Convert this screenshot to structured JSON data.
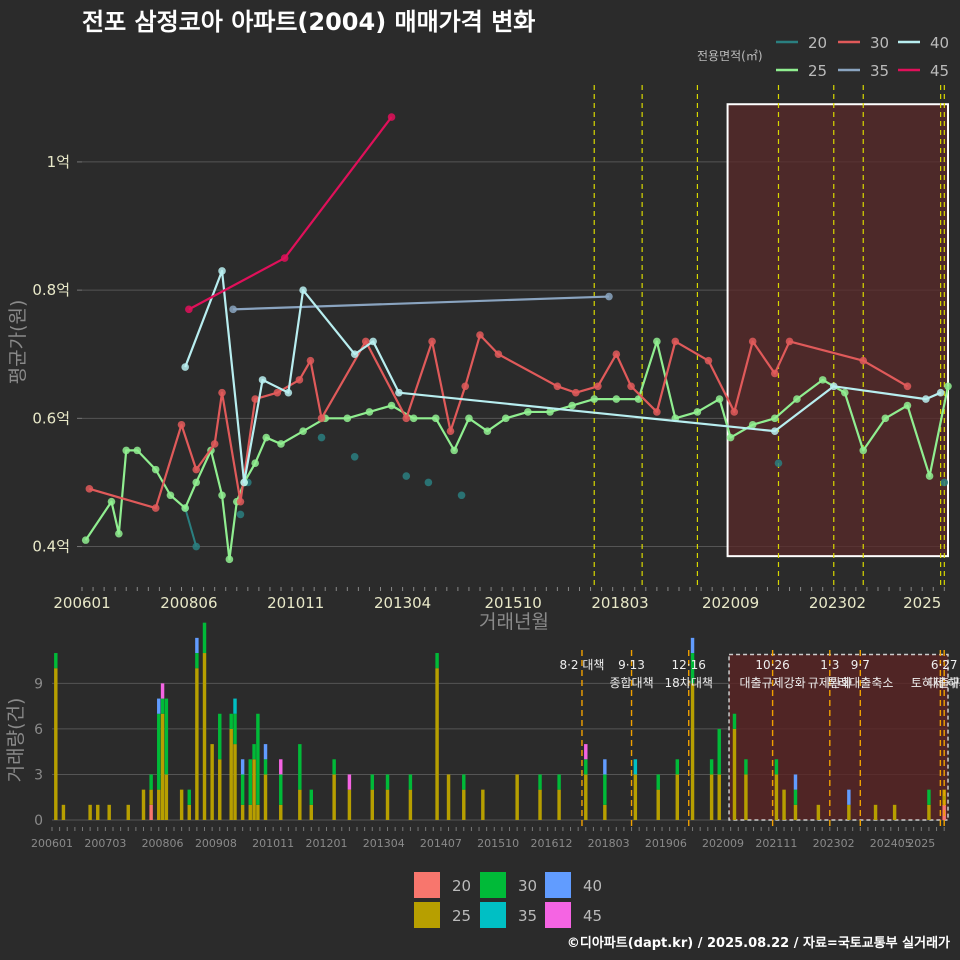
{
  "title": "전포 삼정코아 아파트(2004) 매매가격 변화",
  "footer": "©디아파트(dapt.kr) / 2025.08.22 / 자료=국토교통부 실거래가",
  "colors": {
    "20": "#2a7f80",
    "25": "#90ee90",
    "30": "#e05a5a",
    "35": "#8aa4c0",
    "40": "#b8eef0",
    "45": "#e0105a"
  },
  "bar_colors": {
    "20": "#f8766d",
    "25": "#b79f00",
    "30": "#00ba38",
    "35": "#00bfc4",
    "40": "#619cff",
    "45": "#f564e3"
  },
  "chart_data": [
    {
      "type": "line",
      "name": "price",
      "xlabel": "거래년월",
      "ylabel": "평균가(원)",
      "legend_title": "전용면적(㎡)",
      "legend_position": "top-right",
      "x_ticks": [
        "200601",
        "200806",
        "201011",
        "201304",
        "201510",
        "201803",
        "202009",
        "202302",
        "2025"
      ],
      "y_ticks": [
        {
          "v": 0.4,
          "label": "0.4억"
        },
        {
          "v": 0.6,
          "label": "0.6억"
        },
        {
          "v": 0.8,
          "label": "0.8억"
        },
        {
          "v": 1.0,
          "label": "1억"
        }
      ],
      "ylim": [
        0.34,
        1.12
      ],
      "xlim": [
        "2006-01",
        "2025-08"
      ],
      "highlight_range": [
        "2020-09",
        "2025-08"
      ],
      "policy_dates": [
        "2017-08",
        "2018-09",
        "2019-12",
        "2021-10",
        "2023-01",
        "2023-09",
        "2025-06",
        "2025-07"
      ],
      "series": [
        {
          "name": "20",
          "points": [
            [
              "2008-05",
              0.46
            ],
            [
              "2008-08",
              0.4
            ],
            [
              "2009-08",
              0.45
            ],
            [
              "2009-10",
              0.5
            ],
            [
              "2011-06",
              0.57
            ],
            [
              "2012-03",
              0.54
            ],
            [
              "2013-05",
              0.51
            ],
            [
              "2013-11",
              0.5
            ],
            [
              "2014-08",
              0.48
            ],
            [
              "2021-10",
              0.53
            ],
            [
              "2025-07",
              0.5
            ]
          ]
        },
        {
          "name": "25",
          "points": [
            [
              "2006-02",
              0.41
            ],
            [
              "2006-09",
              0.47
            ],
            [
              "2006-11",
              0.42
            ],
            [
              "2007-01",
              0.55
            ],
            [
              "2007-04",
              0.55
            ],
            [
              "2007-09",
              0.52
            ],
            [
              "2008-01",
              0.48
            ],
            [
              "2008-05",
              0.46
            ],
            [
              "2008-08",
              0.5
            ],
            [
              "2008-12",
              0.55
            ],
            [
              "2009-03",
              0.48
            ],
            [
              "2009-05",
              0.38
            ],
            [
              "2009-07",
              0.47
            ],
            [
              "2009-09",
              0.5
            ],
            [
              "2009-12",
              0.53
            ],
            [
              "2010-03",
              0.57
            ],
            [
              "2010-07",
              0.56
            ],
            [
              "2011-01",
              0.58
            ],
            [
              "2011-07",
              0.6
            ],
            [
              "2012-01",
              0.6
            ],
            [
              "2012-07",
              0.61
            ],
            [
              "2013-01",
              0.62
            ],
            [
              "2013-07",
              0.6
            ],
            [
              "2014-01",
              0.6
            ],
            [
              "2014-06",
              0.55
            ],
            [
              "2014-10",
              0.6
            ],
            [
              "2015-03",
              0.58
            ],
            [
              "2015-08",
              0.6
            ],
            [
              "2016-02",
              0.61
            ],
            [
              "2016-08",
              0.61
            ],
            [
              "2017-02",
              0.62
            ],
            [
              "2017-08",
              0.63
            ],
            [
              "2018-02",
              0.63
            ],
            [
              "2018-08",
              0.63
            ],
            [
              "2019-01",
              0.72
            ],
            [
              "2019-06",
              0.6
            ],
            [
              "2019-12",
              0.61
            ],
            [
              "2020-06",
              0.63
            ],
            [
              "2020-09",
              0.57
            ],
            [
              "2021-03",
              0.59
            ],
            [
              "2021-09",
              0.6
            ],
            [
              "2022-03",
              0.63
            ],
            [
              "2022-10",
              0.66
            ],
            [
              "2023-04",
              0.64
            ],
            [
              "2023-09",
              0.55
            ],
            [
              "2024-03",
              0.6
            ],
            [
              "2024-09",
              0.62
            ],
            [
              "2025-03",
              0.51
            ],
            [
              "2025-08",
              0.65
            ]
          ]
        },
        {
          "name": "30",
          "points": [
            [
              "2006-03",
              0.49
            ],
            [
              "2007-09",
              0.46
            ],
            [
              "2008-04",
              0.59
            ],
            [
              "2008-08",
              0.52
            ],
            [
              "2009-01",
              0.56
            ],
            [
              "2009-03",
              0.64
            ],
            [
              "2009-08",
              0.47
            ],
            [
              "2009-12",
              0.63
            ],
            [
              "2010-06",
              0.64
            ],
            [
              "2010-12",
              0.66
            ],
            [
              "2011-03",
              0.69
            ],
            [
              "2011-06",
              0.6
            ],
            [
              "2012-06",
              0.72
            ],
            [
              "2013-05",
              0.6
            ],
            [
              "2013-12",
              0.72
            ],
            [
              "2014-05",
              0.58
            ],
            [
              "2014-09",
              0.65
            ],
            [
              "2015-01",
              0.73
            ],
            [
              "2015-06",
              0.7
            ],
            [
              "2016-10",
              0.65
            ],
            [
              "2017-03",
              0.64
            ],
            [
              "2017-09",
              0.65
            ],
            [
              "2018-02",
              0.7
            ],
            [
              "2018-06",
              0.65
            ],
            [
              "2019-01",
              0.61
            ],
            [
              "2019-06",
              0.72
            ],
            [
              "2020-03",
              0.69
            ],
            [
              "2020-10",
              0.61
            ],
            [
              "2021-03",
              0.72
            ],
            [
              "2021-09",
              0.67
            ],
            [
              "2022-01",
              0.72
            ],
            [
              "2023-09",
              0.69
            ],
            [
              "2024-09",
              0.65
            ]
          ]
        },
        {
          "name": "35",
          "points": [
            [
              "2009-06",
              0.77
            ],
            [
              "2017-12",
              0.79
            ]
          ]
        },
        {
          "name": "40",
          "points": [
            [
              "2008-05",
              0.68
            ],
            [
              "2009-03",
              0.83
            ],
            [
              "2009-09",
              0.5
            ],
            [
              "2010-02",
              0.66
            ],
            [
              "2010-09",
              0.64
            ],
            [
              "2011-01",
              0.8
            ],
            [
              "2012-03",
              0.7
            ],
            [
              "2012-08",
              0.72
            ],
            [
              "2013-03",
              0.64
            ],
            [
              "2021-09",
              0.58
            ],
            [
              "2023-01",
              0.65
            ],
            [
              "2025-02",
              0.63
            ],
            [
              "2025-06",
              0.64
            ]
          ]
        },
        {
          "name": "45",
          "points": [
            [
              "2008-06",
              0.77
            ],
            [
              "2010-08",
              0.85
            ],
            [
              "2013-01",
              1.07
            ]
          ]
        }
      ]
    },
    {
      "type": "bar",
      "name": "volume",
      "ylabel": "거래량(건)",
      "x_ticks": [
        "200601",
        "200703",
        "200806",
        "200908",
        "201011",
        "201201",
        "201304",
        "201407",
        "201510",
        "201612",
        "201803",
        "201906",
        "202009",
        "202111",
        "202302",
        "202405",
        "2025"
      ],
      "y_ticks": [
        0,
        3,
        6,
        9
      ],
      "ylim": [
        0,
        11.2
      ],
      "highlight_range": [
        "2020-09",
        "2025-08"
      ],
      "policies": [
        {
          "date": "2017-08",
          "label": "8·2 대책",
          "line2": ""
        },
        {
          "date": "2018-09",
          "label": "9·13",
          "line2": "종합대책"
        },
        {
          "date": "2019-12",
          "label": "12·16",
          "line2": "18차대책"
        },
        {
          "date": "2021-10",
          "label": "10·26",
          "line2": "대출규제강화"
        },
        {
          "date": "2023-01",
          "label": "1·3",
          "line2": "규제완화"
        },
        {
          "date": "2023-09",
          "label": "9·7",
          "line2": "특례대출축소"
        },
        {
          "date": "2025-06",
          "label": "",
          "line2": "토허제 해제"
        },
        {
          "date": "2025-07",
          "label": "6·27",
          "line2": "대출규"
        }
      ],
      "series_keys": [
        "20",
        "25",
        "30",
        "35",
        "40",
        "45"
      ],
      "months": [
        [
          "2006-02",
          0,
          10,
          1,
          0,
          0,
          0
        ],
        [
          "2006-04",
          0,
          1,
          0,
          0,
          0,
          0
        ],
        [
          "2006-11",
          0,
          1,
          0,
          0,
          0,
          0
        ],
        [
          "2007-01",
          0,
          1,
          0,
          0,
          0,
          0
        ],
        [
          "2007-04",
          0,
          1,
          0,
          0,
          0,
          0
        ],
        [
          "2007-09",
          0,
          1,
          0,
          0,
          0,
          0
        ],
        [
          "2008-01",
          0,
          2,
          0,
          0,
          0,
          0
        ],
        [
          "2008-03",
          1,
          1,
          1,
          0,
          0,
          0
        ],
        [
          "2008-05",
          0,
          2,
          5,
          0,
          1,
          0
        ],
        [
          "2008-06",
          0,
          7,
          1,
          0,
          0,
          1
        ],
        [
          "2008-07",
          0,
          3,
          5,
          0,
          0,
          0
        ],
        [
          "2008-11",
          0,
          2,
          0,
          0,
          0,
          0
        ],
        [
          "2009-01",
          0,
          1,
          1,
          0,
          0,
          0
        ],
        [
          "2009-03",
          0,
          10,
          1,
          0,
          1,
          0
        ],
        [
          "2009-05",
          0,
          11,
          2,
          0,
          0,
          0
        ],
        [
          "2009-07",
          0,
          5,
          0,
          0,
          0,
          0
        ],
        [
          "2009-09",
          0,
          4,
          3,
          0,
          0,
          0
        ],
        [
          "2009-12",
          0,
          6,
          1,
          0,
          0,
          0
        ],
        [
          "2010-01",
          0,
          5,
          2,
          1,
          0,
          0
        ],
        [
          "2010-03",
          0,
          1,
          2,
          0,
          1,
          0
        ],
        [
          "2010-05",
          0,
          1,
          3,
          0,
          0,
          0
        ],
        [
          "2010-06",
          0,
          4,
          1,
          0,
          0,
          0
        ],
        [
          "2010-07",
          0,
          1,
          6,
          0,
          0,
          0
        ],
        [
          "2010-09",
          0,
          3,
          1,
          0,
          1,
          0
        ],
        [
          "2011-01",
          0,
          1,
          2,
          0,
          0,
          1
        ],
        [
          "2011-06",
          0,
          2,
          3,
          0,
          0,
          0
        ],
        [
          "2011-09",
          0,
          1,
          1,
          0,
          0,
          0
        ],
        [
          "2012-03",
          0,
          3,
          1,
          0,
          0,
          0
        ],
        [
          "2012-07",
          0,
          2,
          0,
          0,
          0,
          1
        ],
        [
          "2013-01",
          0,
          2,
          1,
          0,
          0,
          0
        ],
        [
          "2013-05",
          0,
          2,
          1,
          0,
          0,
          0
        ],
        [
          "2013-11",
          0,
          2,
          1,
          0,
          0,
          0
        ],
        [
          "2014-06",
          0,
          10,
          1,
          0,
          0,
          0
        ],
        [
          "2014-09",
          0,
          3,
          0,
          0,
          0,
          0
        ],
        [
          "2015-01",
          0,
          2,
          1,
          0,
          0,
          0
        ],
        [
          "2015-06",
          0,
          2,
          0,
          0,
          0,
          0
        ],
        [
          "2016-03",
          0,
          3,
          0,
          0,
          0,
          0
        ],
        [
          "2016-09",
          0,
          2,
          1,
          0,
          0,
          0
        ],
        [
          "2017-02",
          0,
          2,
          1,
          0,
          0,
          0
        ],
        [
          "2017-09",
          0,
          3,
          1,
          0,
          0,
          1
        ],
        [
          "2018-02",
          0,
          1,
          2,
          0,
          1,
          0
        ],
        [
          "2018-10",
          0,
          3,
          0,
          1,
          0,
          0
        ],
        [
          "2019-04",
          0,
          2,
          1,
          0,
          0,
          0
        ],
        [
          "2019-09",
          0,
          3,
          1,
          0,
          0,
          0
        ],
        [
          "2020-01",
          0,
          9,
          2,
          0,
          1,
          0
        ],
        [
          "2020-06",
          0,
          3,
          1,
          0,
          0,
          0
        ],
        [
          "2020-08",
          0,
          3,
          3,
          0,
          0,
          0
        ],
        [
          "2020-12",
          0,
          6,
          1,
          0,
          0,
          0
        ],
        [
          "2021-03",
          0,
          3,
          1,
          0,
          0,
          0
        ],
        [
          "2021-11",
          0,
          3,
          1,
          0,
          0,
          0
        ],
        [
          "2022-01",
          0,
          2,
          0,
          0,
          0,
          0
        ],
        [
          "2022-04",
          0,
          1,
          1,
          0,
          1,
          0
        ],
        [
          "2022-10",
          0,
          1,
          0,
          0,
          0,
          0
        ],
        [
          "2023-06",
          0,
          1,
          0,
          0,
          1,
          0
        ],
        [
          "2024-01",
          0,
          1,
          0,
          0,
          0,
          0
        ],
        [
          "2024-06",
          0,
          1,
          0,
          0,
          0,
          0
        ],
        [
          "2025-03",
          0,
          1,
          1,
          0,
          0,
          0
        ],
        [
          "2025-07",
          1,
          1,
          0,
          0,
          0,
          0
        ]
      ]
    }
  ]
}
